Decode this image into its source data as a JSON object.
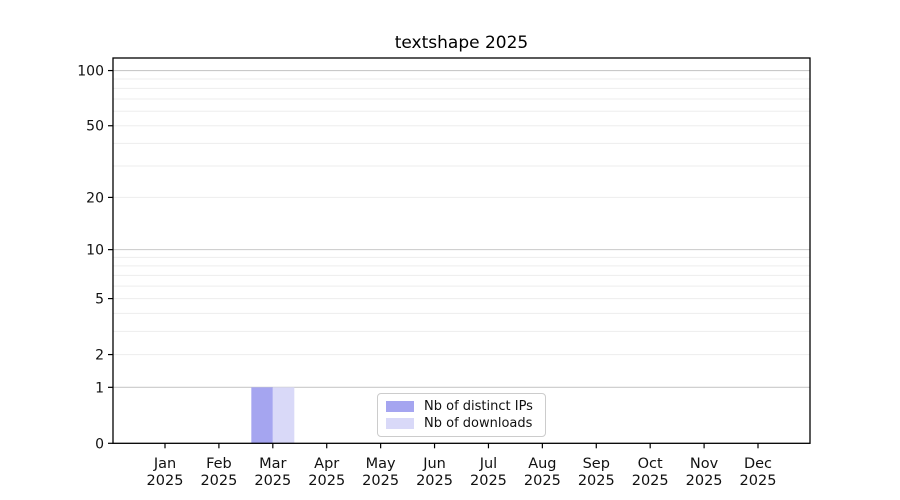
{
  "chart_data": {
    "type": "bar",
    "title": "textshape 2025",
    "categories": [
      "Jan",
      "Feb",
      "Mar",
      "Apr",
      "May",
      "Jun",
      "Jul",
      "Aug",
      "Sep",
      "Oct",
      "Nov",
      "Dec"
    ],
    "category_year": "2025",
    "series": [
      {
        "name": "Nb of distinct IPs",
        "color": "#a5a5f0",
        "values": [
          0,
          0,
          1,
          0,
          0,
          0,
          0,
          0,
          0,
          0,
          0,
          0
        ]
      },
      {
        "name": "Nb of downloads",
        "color": "#d9d9f8",
        "values": [
          0,
          0,
          1,
          0,
          0,
          0,
          0,
          0,
          0,
          0,
          0,
          0
        ]
      }
    ],
    "yscale": "log1p",
    "ylim": [
      0,
      117
    ],
    "yticks": [
      0,
      1,
      2,
      5,
      10,
      20,
      50,
      100
    ],
    "major_gridlines": [
      1,
      10,
      100
    ],
    "minor_gridlines": [
      2,
      3,
      4,
      5,
      6,
      7,
      8,
      9,
      20,
      30,
      40,
      50,
      60,
      70,
      80,
      90
    ],
    "grid": true,
    "legend": {
      "position": "bottom-center-inside",
      "entries": [
        "Nb of distinct IPs",
        "Nb of downloads"
      ]
    },
    "colors": {
      "axis": "#000000",
      "text": "#111111",
      "major_grid": "#c9c9c9",
      "minor_grid": "#ededed",
      "legend_border": "#cccccc",
      "background": "#ffffff"
    }
  }
}
